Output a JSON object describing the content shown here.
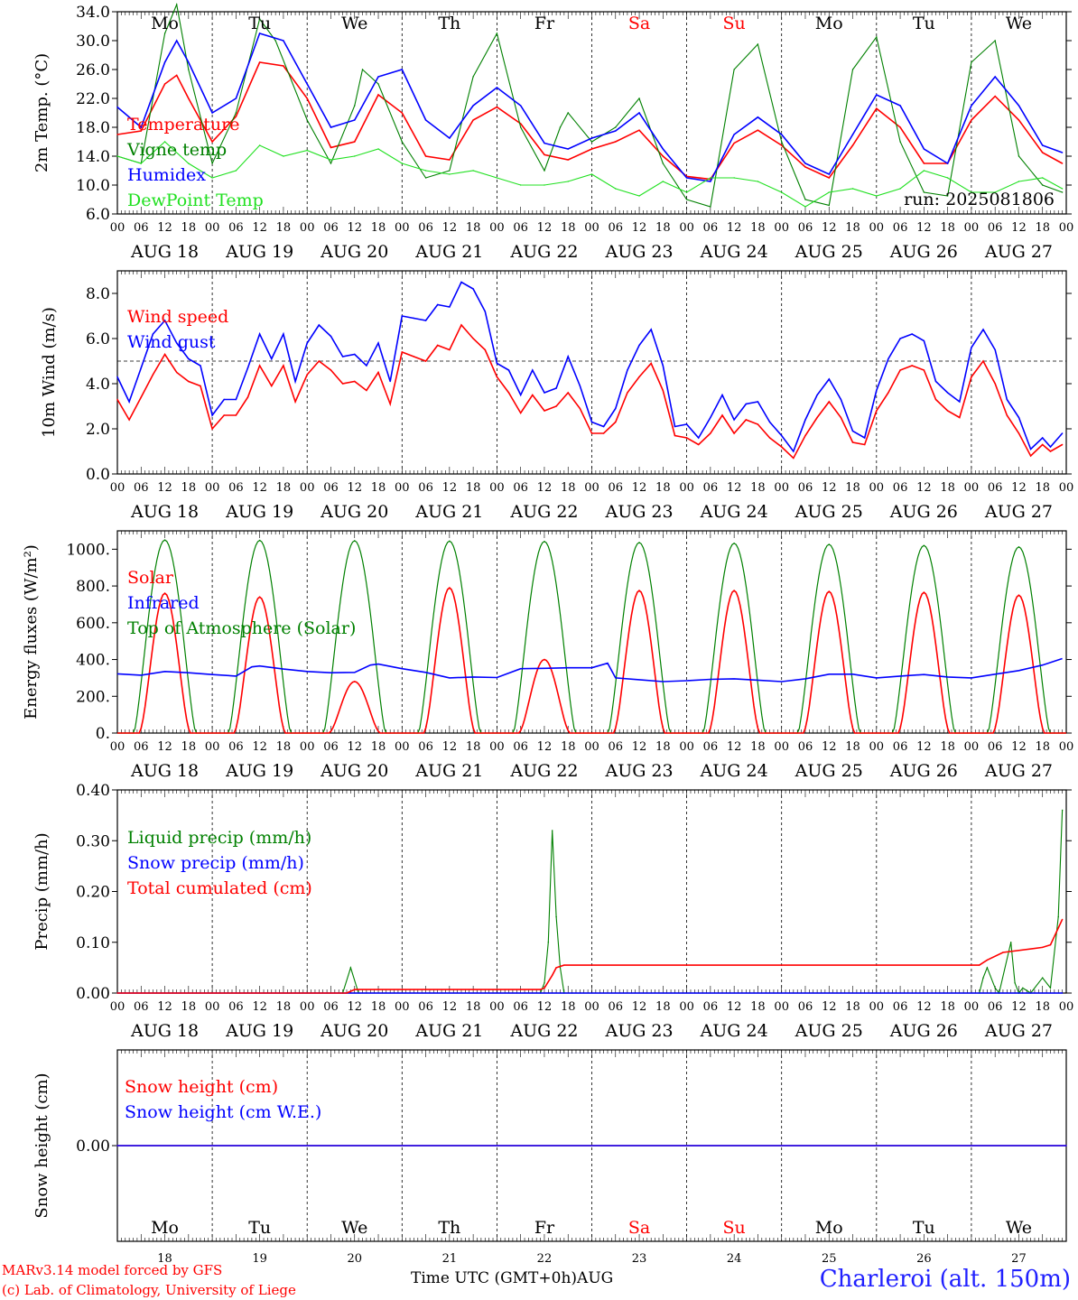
{
  "footer": {
    "model_line": "MARv3.14 model forced by GFS",
    "credit_line": "(c) Lab. of Climatology, University of Liege",
    "time_axis_label": "Time UTC (GMT+0h)",
    "month_label": "AUG",
    "station": "Charleroi (alt. 150m)"
  },
  "days": [
    {
      "abbr": "Mo",
      "date": "AUG 18",
      "num": "18",
      "weekend": false
    },
    {
      "abbr": "Tu",
      "date": "AUG 19",
      "num": "19",
      "weekend": false
    },
    {
      "abbr": "We",
      "date": "AUG 20",
      "num": "20",
      "weekend": false
    },
    {
      "abbr": "Th",
      "date": "AUG 21",
      "num": "21",
      "weekend": false
    },
    {
      "abbr": "Fr",
      "date": "AUG 22",
      "num": "22",
      "weekend": false
    },
    {
      "abbr": "Sa",
      "date": "AUG 23",
      "num": "23",
      "weekend": true
    },
    {
      "abbr": "Su",
      "date": "AUG 24",
      "num": "24",
      "weekend": true
    },
    {
      "abbr": "Mo",
      "date": "AUG 25",
      "num": "25",
      "weekend": false
    },
    {
      "abbr": "Tu",
      "date": "AUG 26",
      "num": "26",
      "weekend": false
    },
    {
      "abbr": "We",
      "date": "AUG 27",
      "num": "27",
      "weekend": false
    }
  ],
  "hour_tick_labels": [
    "00",
    "06",
    "12",
    "18"
  ],
  "final_hour_label": "00",
  "colors": {
    "red": "#ff0000",
    "green": "#008000",
    "blue": "#0000ff",
    "lightgreen": "#20e020",
    "weekend": "#ff0000"
  },
  "chart_data": [
    {
      "id": "temperature",
      "type": "line",
      "ylabel": "2m Temp. (°C)",
      "ylim": [
        6,
        34
      ],
      "yticks": [
        "6.0",
        "10.0",
        "14.0",
        "18.0",
        "22.0",
        "26.0",
        "30.0",
        "34.0"
      ],
      "x_unit": "hours since Aug 18 00 UTC",
      "run_label": "run: 2025081806",
      "series": [
        {
          "name": "Temperature",
          "color": "red",
          "x": [
            0,
            6,
            12,
            15,
            18,
            24,
            30,
            36,
            42,
            48,
            54,
            60,
            66,
            72,
            78,
            84,
            90,
            96,
            102,
            108,
            114,
            120,
            126,
            132,
            138,
            144,
            150,
            156,
            162,
            168,
            174,
            180,
            186,
            192,
            198,
            204,
            210,
            216,
            222,
            228,
            234,
            239
          ],
          "y": [
            17,
            17.5,
            24,
            25.2,
            22,
            16,
            19.5,
            27,
            26.5,
            22,
            15.2,
            16,
            22.5,
            20,
            14,
            13.5,
            19,
            20.8,
            18.5,
            14.2,
            13.5,
            15,
            16,
            17.6,
            14,
            11.2,
            10.8,
            15.8,
            17.6,
            15.5,
            12.5,
            11,
            15.5,
            20.6,
            18,
            13,
            13,
            19,
            22.3,
            19,
            14.5,
            13
          ]
        },
        {
          "name": "Vigne temp",
          "color": "green",
          "x": [
            0,
            6,
            12,
            15,
            18,
            24,
            30,
            36,
            40,
            48,
            54,
            60,
            62,
            66,
            72,
            78,
            84,
            90,
            96,
            102,
            108,
            112,
            114,
            120,
            126,
            132,
            138,
            144,
            150,
            156,
            162,
            168,
            174,
            180,
            186,
            192,
            198,
            204,
            210,
            216,
            222,
            228,
            234,
            239
          ],
          "y": [
            14,
            13,
            31,
            35,
            26,
            13,
            20,
            33,
            30,
            19,
            13,
            21,
            26,
            24,
            16,
            11,
            12,
            25,
            31,
            18,
            12,
            18,
            20,
            16,
            18,
            22,
            13,
            8,
            7,
            26,
            29.5,
            16,
            8,
            7.2,
            26,
            30.5,
            16,
            9,
            8.5,
            27,
            30,
            14,
            10,
            9
          ]
        },
        {
          "name": "Humidex",
          "color": "blue",
          "x": [
            0,
            6,
            12,
            15,
            18,
            24,
            30,
            36,
            42,
            48,
            54,
            60,
            66,
            72,
            78,
            84,
            90,
            96,
            102,
            108,
            114,
            120,
            126,
            132,
            138,
            144,
            150,
            156,
            162,
            168,
            174,
            180,
            186,
            192,
            198,
            204,
            210,
            216,
            222,
            228,
            234,
            239
          ],
          "y": [
            20.8,
            18,
            27,
            30,
            27,
            20,
            22,
            31,
            30,
            24,
            18,
            19,
            25,
            26,
            19,
            16.5,
            21,
            23.5,
            21,
            15.8,
            15,
            16.5,
            17.5,
            20,
            15,
            11,
            10.5,
            17,
            19.4,
            17,
            13,
            11.5,
            17,
            22.5,
            21,
            15,
            13,
            21,
            25,
            21,
            15.5,
            14.5
          ]
        },
        {
          "name": "DewPoint Temp",
          "color": "lightgreen",
          "x": [
            0,
            6,
            12,
            18,
            24,
            30,
            36,
            42,
            48,
            54,
            60,
            66,
            72,
            78,
            84,
            90,
            96,
            102,
            108,
            114,
            120,
            126,
            132,
            138,
            144,
            150,
            156,
            162,
            168,
            174,
            180,
            186,
            192,
            198,
            204,
            210,
            216,
            222,
            228,
            234,
            239
          ],
          "y": [
            14,
            13,
            16,
            13,
            11,
            12,
            15.5,
            14,
            14.8,
            13.5,
            14,
            15,
            13,
            12,
            11.5,
            12,
            11,
            10,
            10,
            10.5,
            11.5,
            9.5,
            8.5,
            10.5,
            9,
            11,
            11,
            10.5,
            9,
            7,
            9,
            9.5,
            8.5,
            9.5,
            12,
            11,
            9,
            9,
            10.5,
            11,
            9.5
          ]
        }
      ]
    },
    {
      "id": "wind",
      "type": "line",
      "ylabel": "10m Wind (m/s)",
      "ylim": [
        0,
        9
      ],
      "yticks": [
        "0.0",
        "2.0",
        "4.0",
        "6.0",
        "8.0"
      ],
      "reference_line": 5,
      "series": [
        {
          "name": "Wind speed",
          "color": "red",
          "x": [
            0,
            3,
            6,
            9,
            12,
            15,
            18,
            21,
            24,
            27,
            30,
            33,
            36,
            39,
            42,
            45,
            48,
            51,
            54,
            57,
            60,
            63,
            66,
            69,
            72,
            75,
            78,
            81,
            84,
            87,
            90,
            93,
            96,
            99,
            102,
            105,
            108,
            111,
            114,
            117,
            120,
            123,
            126,
            129,
            132,
            135,
            138,
            141,
            144,
            147,
            150,
            153,
            156,
            159,
            162,
            165,
            168,
            171,
            174,
            177,
            180,
            183,
            186,
            189,
            192,
            195,
            198,
            201,
            204,
            207,
            210,
            213,
            216,
            219,
            222,
            225,
            228,
            231,
            234,
            236,
            239
          ],
          "y": [
            3.3,
            2.4,
            3.4,
            4.4,
            5.3,
            4.5,
            4.1,
            3.9,
            2.0,
            2.6,
            2.6,
            3.4,
            4.8,
            3.9,
            4.8,
            3.2,
            4.4,
            5.0,
            4.6,
            4.0,
            4.1,
            3.7,
            4.5,
            3.1,
            5.4,
            5.2,
            5.0,
            5.7,
            5.5,
            6.6,
            6.0,
            5.5,
            4.3,
            3.6,
            2.7,
            3.5,
            2.8,
            3.0,
            3.6,
            2.9,
            1.8,
            1.8,
            2.3,
            3.6,
            4.3,
            4.9,
            3.7,
            1.7,
            1.6,
            1.3,
            1.8,
            2.6,
            1.8,
            2.4,
            2.2,
            1.6,
            1.2,
            0.7,
            1.7,
            2.5,
            3.2,
            2.5,
            1.4,
            1.3,
            2.8,
            3.6,
            4.6,
            4.8,
            4.6,
            3.3,
            2.8,
            2.5,
            4.3,
            5.0,
            4.0,
            2.6,
            1.8,
            0.8,
            1.3,
            1.0,
            1.3
          ]
        },
        {
          "name": "Wind gust",
          "color": "blue",
          "x": [
            0,
            3,
            6,
            9,
            12,
            15,
            18,
            21,
            24,
            27,
            30,
            33,
            36,
            39,
            42,
            45,
            48,
            51,
            54,
            57,
            60,
            63,
            66,
            69,
            72,
            75,
            78,
            81,
            84,
            87,
            90,
            93,
            96,
            99,
            102,
            105,
            108,
            111,
            114,
            117,
            120,
            123,
            126,
            129,
            132,
            135,
            138,
            141,
            144,
            147,
            150,
            153,
            156,
            159,
            162,
            165,
            168,
            171,
            174,
            177,
            180,
            183,
            186,
            189,
            192,
            195,
            198,
            201,
            204,
            207,
            210,
            213,
            216,
            219,
            222,
            225,
            228,
            231,
            234,
            236,
            239
          ],
          "y": [
            4.3,
            3.2,
            4.7,
            6.2,
            6.8,
            5.8,
            5.1,
            4.8,
            2.6,
            3.3,
            3.3,
            4.7,
            6.2,
            5.1,
            6.2,
            4.1,
            5.8,
            6.6,
            6.1,
            5.2,
            5.3,
            4.8,
            5.8,
            4.1,
            7.0,
            6.9,
            6.8,
            7.5,
            7.4,
            8.5,
            8.2,
            7.2,
            4.9,
            4.6,
            3.5,
            4.6,
            3.6,
            3.8,
            5.2,
            3.9,
            2.3,
            2.1,
            2.9,
            4.6,
            5.7,
            6.4,
            4.8,
            2.1,
            2.2,
            1.6,
            2.5,
            3.5,
            2.4,
            3.1,
            3.2,
            2.3,
            1.7,
            1.0,
            2.4,
            3.5,
            4.2,
            3.3,
            1.9,
            1.6,
            3.7,
            5.1,
            6.0,
            6.2,
            5.9,
            4.1,
            3.6,
            3.2,
            5.6,
            6.4,
            5.5,
            3.3,
            2.5,
            1.1,
            1.6,
            1.2,
            1.8
          ]
        }
      ]
    },
    {
      "id": "energy",
      "type": "line",
      "ylabel": "Energy fluxes (W/m²)",
      "ylim": [
        0,
        1100
      ],
      "yticks": [
        "0.",
        "200.",
        "400.",
        "600.",
        "800.",
        "1000."
      ],
      "toa_peak": [
        1050,
        1048,
        1046,
        1044,
        1042,
        1036,
        1032,
        1026,
        1020,
        1012
      ],
      "solar_peak": [
        760,
        740,
        280,
        790,
        400,
        775,
        775,
        770,
        765,
        750
      ],
      "series": [
        {
          "name": "Solar",
          "color": "red"
        },
        {
          "name": "Infrared",
          "color": "blue",
          "x": [
            0,
            6,
            12,
            18,
            24,
            30,
            34,
            36,
            42,
            48,
            54,
            60,
            64,
            66,
            72,
            78,
            84,
            90,
            96,
            102,
            108,
            114,
            120,
            124,
            126,
            132,
            138,
            144,
            150,
            156,
            162,
            168,
            174,
            180,
            186,
            192,
            198,
            204,
            210,
            216,
            222,
            228,
            234,
            239
          ],
          "y": [
            322,
            315,
            335,
            328,
            318,
            310,
            360,
            365,
            348,
            335,
            328,
            330,
            370,
            375,
            350,
            330,
            300,
            305,
            302,
            350,
            352,
            355,
            355,
            380,
            300,
            290,
            280,
            285,
            292,
            295,
            288,
            280,
            295,
            320,
            320,
            300,
            310,
            318,
            305,
            300,
            320,
            340,
            370,
            405
          ]
        },
        {
          "name": "Top of Atmosphere (Solar)",
          "color": "green"
        }
      ]
    },
    {
      "id": "precip",
      "type": "line",
      "ylabel": "Precip (mm/h)",
      "ylim": [
        0,
        0.4
      ],
      "yticks": [
        "0.00",
        "0.10",
        "0.20",
        "0.30",
        "0.40"
      ],
      "series": [
        {
          "name": "Liquid precip (mm/h)",
          "color": "green",
          "x": [
            0,
            57,
            59,
            61,
            63,
            107,
            108,
            109,
            110,
            111,
            112,
            113,
            115,
            218,
            219,
            220,
            222,
            223,
            226,
            227,
            228,
            229,
            231,
            234,
            236,
            238,
            239
          ],
          "y": [
            0,
            0,
            0.05,
            0,
            0,
            0,
            0.02,
            0.1,
            0.32,
            0.15,
            0.05,
            0,
            0,
            0,
            0.03,
            0.05,
            0.01,
            0,
            0.1,
            0.02,
            0,
            0.01,
            0,
            0.03,
            0.01,
            0.15,
            0.36
          ]
        },
        {
          "name": "Snow precip (mm/h)",
          "color": "blue",
          "x": [
            0,
            239
          ],
          "y": [
            0,
            0
          ]
        },
        {
          "name": "Total cumulated (cm)",
          "color": "red",
          "x": [
            0,
            58,
            60,
            61,
            107,
            108,
            110,
            111,
            113,
            218,
            220,
            224,
            234,
            236,
            239
          ],
          "y": [
            0,
            0,
            0.007,
            0.007,
            0.007,
            0.01,
            0.035,
            0.05,
            0.055,
            0.055,
            0.065,
            0.08,
            0.09,
            0.095,
            0.145
          ]
        }
      ]
    },
    {
      "id": "snow",
      "type": "line",
      "ylabel": "Snow height (cm)",
      "ylim": [
        -0.5,
        0.5
      ],
      "yticks": [
        "0.00"
      ],
      "series": [
        {
          "name": "Snow height (cm)",
          "color": "red",
          "x": [
            0,
            240
          ],
          "y": [
            0,
            0
          ]
        },
        {
          "name": "Snow height (cm W.E.)",
          "color": "blue",
          "x": [
            0,
            240
          ],
          "y": [
            0,
            0
          ]
        }
      ]
    }
  ]
}
